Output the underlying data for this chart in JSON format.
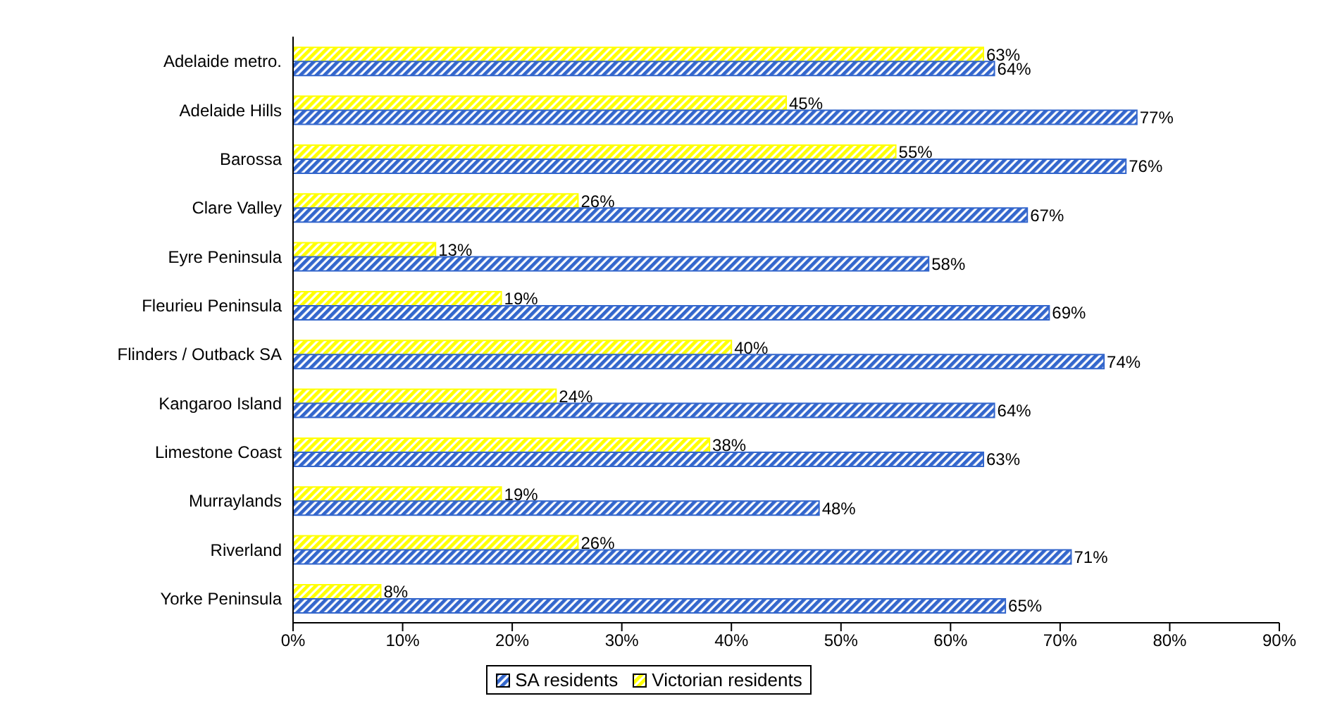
{
  "chart_data": {
    "type": "bar",
    "orientation": "horizontal",
    "categories": [
      "Adelaide metro.",
      "Adelaide Hills",
      "Barossa",
      "Clare Valley",
      "Eyre Peninsula",
      "Fleurieu Peninsula",
      "Flinders / Outback SA",
      "Kangaroo Island",
      "Limestone Coast",
      "Murraylands",
      "Riverland",
      "Yorke Peninsula"
    ],
    "series": [
      {
        "name": "SA residents",
        "color": "#3366cc",
        "values": [
          64,
          77,
          76,
          67,
          58,
          69,
          74,
          64,
          63,
          48,
          71,
          65
        ],
        "value_labels": [
          "64%",
          "77%",
          "76%",
          "67%",
          "58%",
          "69%",
          "74%",
          "64%",
          "63%",
          "48%",
          "71%",
          "65%"
        ]
      },
      {
        "name": "Victorian residents",
        "color": "#ffff00",
        "values": [
          63,
          45,
          55,
          26,
          13,
          19,
          40,
          24,
          38,
          19,
          26,
          8
        ],
        "value_labels": [
          "63%",
          "45%",
          "55%",
          "26%",
          "13%",
          "19%",
          "40%",
          "24%",
          "38%",
          "19%",
          "26%",
          "8%"
        ]
      }
    ],
    "xlim": [
      0,
      90
    ],
    "xticks": [
      {
        "value": 0,
        "label": "0%"
      },
      {
        "value": 10,
        "label": "10%"
      },
      {
        "value": 20,
        "label": "20%"
      },
      {
        "value": 30,
        "label": "30%"
      },
      {
        "value": 40,
        "label": "40%"
      },
      {
        "value": 50,
        "label": "50%"
      },
      {
        "value": 60,
        "label": "60%"
      },
      {
        "value": 70,
        "label": "70%"
      },
      {
        "value": 80,
        "label": "80%"
      },
      {
        "value": 90,
        "label": "90%"
      }
    ],
    "grid": false,
    "legend": "bottom"
  }
}
